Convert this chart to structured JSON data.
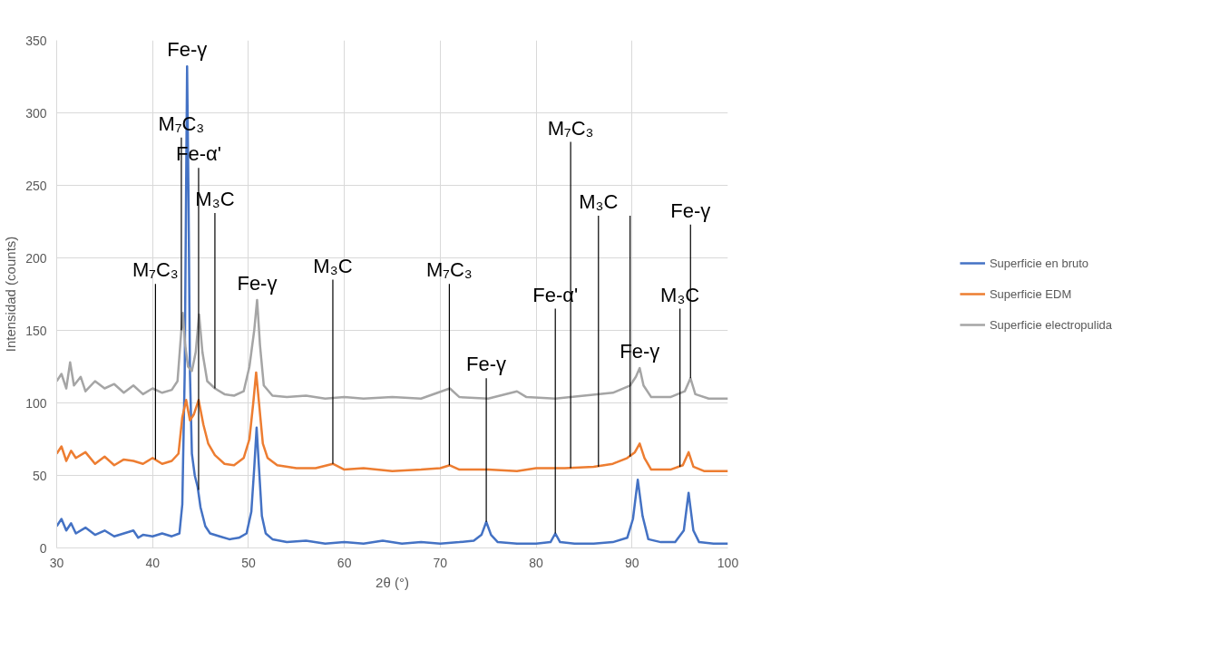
{
  "chart_data": {
    "type": "line",
    "xlabel": "2θ (°)",
    "ylabel": "Intensidad (counts)",
    "xlim": [
      30,
      100
    ],
    "xticks": [
      30,
      40,
      50,
      60,
      70,
      80,
      90,
      100
    ],
    "ylim": [
      0,
      350
    ],
    "yticks": [
      0,
      50,
      100,
      150,
      200,
      250,
      300,
      350
    ],
    "grid": true,
    "legend": "right",
    "series": [
      {
        "name": "Superficie en bruto",
        "color": "#4472c4",
        "x": [
          30,
          30.5,
          31,
          31.5,
          32,
          33,
          34,
          35,
          36,
          37,
          38,
          38.5,
          39,
          40,
          41,
          42,
          42.8,
          43.1,
          43.35,
          43.5,
          43.6,
          43.75,
          43.9,
          44.1,
          44.4,
          44.7,
          45,
          45.5,
          46,
          47,
          48,
          49,
          49.8,
          50.3,
          50.6,
          50.85,
          51.1,
          51.4,
          51.8,
          52.5,
          54,
          56,
          58,
          60,
          62,
          64,
          66,
          68,
          70,
          72,
          73.5,
          74.3,
          74.8,
          75.3,
          76,
          78,
          80,
          81.5,
          82,
          82.5,
          84,
          86,
          88,
          89.5,
          90.1,
          90.6,
          91.1,
          91.7,
          93,
          94.5,
          95.4,
          95.9,
          96.4,
          97,
          98.5,
          100
        ],
        "values": [
          15,
          20,
          12,
          17,
          10,
          14,
          9,
          12,
          8,
          10,
          12,
          7,
          9,
          8,
          10,
          8,
          10,
          30,
          120,
          250,
          332,
          240,
          120,
          65,
          50,
          42,
          28,
          15,
          10,
          8,
          6,
          7,
          10,
          25,
          55,
          83,
          55,
          22,
          10,
          6,
          4,
          5,
          3,
          4,
          3,
          5,
          3,
          4,
          3,
          4,
          5,
          9,
          18,
          9,
          4,
          3,
          3,
          4,
          10,
          4,
          3,
          3,
          4,
          7,
          20,
          47,
          22,
          6,
          4,
          4,
          12,
          38,
          12,
          4,
          3,
          3
        ]
      },
      {
        "name": "Superficie EDM",
        "color": "#ed7d31",
        "x": [
          30,
          30.5,
          31,
          31.5,
          32,
          33,
          34,
          35,
          36,
          37,
          38,
          39,
          40,
          41,
          42,
          42.7,
          43.1,
          43.5,
          43.9,
          44.3,
          44.8,
          45.3,
          45.8,
          46.5,
          47.5,
          48.5,
          49.5,
          50.1,
          50.5,
          50.8,
          51.1,
          51.5,
          52,
          53,
          55,
          57,
          58.8,
          60,
          62,
          65,
          68,
          70,
          71,
          72,
          75,
          78,
          80,
          83,
          86,
          88,
          89.5,
          90.3,
          90.8,
          91.3,
          92,
          94,
          95.3,
          95.9,
          96.4,
          97.5,
          100
        ],
        "values": [
          65,
          70,
          60,
          67,
          62,
          66,
          58,
          63,
          57,
          61,
          60,
          58,
          62,
          58,
          60,
          65,
          90,
          102,
          88,
          92,
          102,
          85,
          72,
          64,
          58,
          57,
          62,
          75,
          100,
          121,
          100,
          72,
          62,
          57,
          55,
          55,
          58,
          54,
          55,
          53,
          54,
          55,
          57,
          54,
          54,
          53,
          55,
          55,
          56,
          58,
          62,
          66,
          72,
          62,
          54,
          54,
          57,
          66,
          56,
          53,
          53
        ]
      },
      {
        "name": "Superficie electropulida",
        "color": "#a5a5a5",
        "x": [
          30,
          30.5,
          31,
          31.4,
          31.8,
          32.5,
          33,
          34,
          35,
          36,
          37,
          38,
          39,
          40,
          41,
          42,
          42.6,
          43,
          43.15,
          43.4,
          43.7,
          44.1,
          44.5,
          44.85,
          45.2,
          45.7,
          46.5,
          47.5,
          48.5,
          49.5,
          50.1,
          50.6,
          50.9,
          51.2,
          51.6,
          52.5,
          54,
          56,
          58,
          60,
          62,
          65,
          68,
          71,
          72,
          75,
          78,
          79,
          82,
          85,
          88,
          89.8,
          90.4,
          90.8,
          91.2,
          92,
          94,
          95.5,
          96.1,
          96.6,
          98,
          100
        ],
        "values": [
          115,
          120,
          110,
          128,
          112,
          118,
          108,
          115,
          110,
          113,
          107,
          112,
          106,
          110,
          107,
          109,
          115,
          150,
          162,
          140,
          125,
          122,
          135,
          161,
          135,
          115,
          110,
          106,
          105,
          108,
          125,
          150,
          171,
          140,
          112,
          105,
          104,
          105,
          103,
          104,
          103,
          104,
          103,
          110,
          104,
          103,
          108,
          104,
          103,
          105,
          107,
          112,
          118,
          124,
          112,
          104,
          104,
          108,
          117,
          106,
          103,
          103
        ]
      },
      {
        "color": "#000000",
        "x": [
          43.0,
          43.0,
          null,
          44.8,
          44.8,
          null,
          46.5,
          46.5,
          null,
          40.3,
          40.3,
          null,
          58.8,
          58.8,
          null,
          70.95,
          70.95,
          null,
          74.8,
          74.8,
          null,
          82.0,
          82.0,
          null,
          83.6,
          83.6,
          null,
          86.5,
          86.5,
          null,
          89.8,
          89.8,
          null,
          95.0,
          95.0,
          null,
          96.1,
          96.1
        ],
        "values": [
          283,
          150,
          null,
          262,
          40,
          null,
          231,
          110,
          null,
          182,
          61,
          null,
          185,
          58,
          null,
          182,
          57,
          null,
          117,
          18,
          null,
          165,
          10,
          null,
          280,
          55,
          null,
          229,
          56,
          null,
          229,
          63,
          null,
          165,
          56,
          null,
          223,
          117
        ]
      }
    ],
    "annotations": [
      {
        "text": "Fe-γ",
        "x": 43.6,
        "y": 332
      },
      {
        "text": "M₇C₃",
        "x": 43.0,
        "y": 283
      },
      {
        "text": "Fe-α'",
        "x": 44.8,
        "y": 262
      },
      {
        "text": "M₃C",
        "x": 46.5,
        "y": 231
      },
      {
        "text": "M₇C₃",
        "x": 40.3,
        "y": 182
      },
      {
        "text": "Fe-γ",
        "x": 50.9,
        "y": 171
      },
      {
        "text": "M₃C",
        "x": 58.8,
        "y": 185
      },
      {
        "text": "M₇C₃",
        "x": 70.95,
        "y": 182
      },
      {
        "text": "Fe-γ",
        "x": 74.8,
        "y": 117
      },
      {
        "text": "Fe-α'",
        "x": 82.0,
        "y": 165
      },
      {
        "text": "M₇C₃",
        "x": 83.6,
        "y": 280
      },
      {
        "text": "M₃C",
        "x": 86.5,
        "y": 229
      },
      {
        "text": "Fe-γ",
        "x": 90.8,
        "y": 124
      },
      {
        "text": "M₃C",
        "x": 95.0,
        "y": 165
      },
      {
        "text": "Fe-γ",
        "x": 96.1,
        "y": 223
      }
    ]
  }
}
